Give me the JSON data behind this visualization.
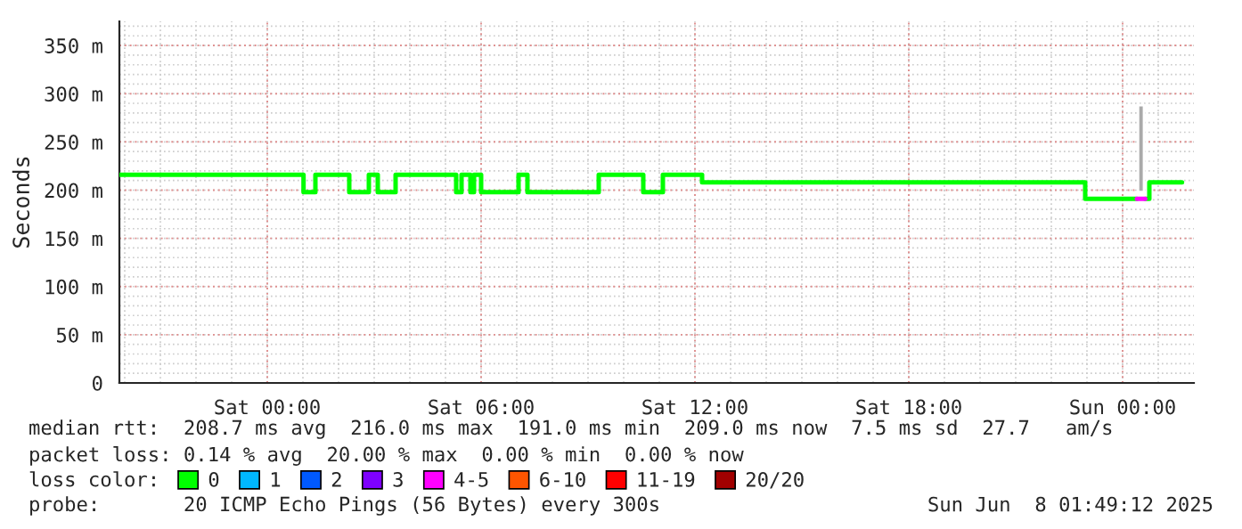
{
  "chart_data": {
    "type": "step",
    "ylabel": "Seconds",
    "xlim": [
      "2025-06-06T19:51",
      "2025-06-08T02:00"
    ],
    "xticks": [
      {
        "value": "2025-06-07T00:00",
        "label": "Sat 00:00"
      },
      {
        "value": "2025-06-07T06:00",
        "label": "Sat 06:00"
      },
      {
        "value": "2025-06-07T12:00",
        "label": "Sat 12:00"
      },
      {
        "value": "2025-06-07T18:00",
        "label": "Sat 18:00"
      },
      {
        "value": "2025-06-08T00:00",
        "label": "Sun 00:00"
      }
    ],
    "ylim": [
      0,
      375
    ],
    "yticks": [
      0,
      {
        "value": 50,
        "label": "50 m"
      },
      {
        "value": 100,
        "label": "100 m"
      },
      {
        "value": 150,
        "label": "150 m"
      },
      {
        "value": 200,
        "label": "200 m"
      },
      {
        "value": 250,
        "label": "250 m"
      },
      {
        "value": 300,
        "label": "300 m"
      },
      {
        "value": 350,
        "label": "350 m"
      }
    ],
    "grid": true,
    "legend": "bottom",
    "legend_title": "loss color:",
    "series": [
      {
        "name": "0",
        "color": "#00ff00",
        "x": [
          "2025-06-06T19:51",
          "2025-06-07T01:01",
          "2025-06-07T01:21",
          "2025-06-07T02:18",
          "2025-06-07T02:51",
          "2025-06-07T03:06",
          "2025-06-07T03:36",
          "2025-06-07T05:18",
          "2025-06-07T05:27",
          "2025-06-07T05:42",
          "2025-06-07T05:48",
          "2025-06-07T06:00",
          "2025-06-07T07:03",
          "2025-06-07T07:18",
          "2025-06-07T09:18",
          "2025-06-07T10:33",
          "2025-06-07T11:06",
          "2025-06-07T12:12",
          "2025-06-07T22:57",
          "2025-06-08T00:24",
          "2025-06-08T00:38",
          "2025-06-08T00:45",
          "2025-06-08T01:40"
        ],
        "values": [
          216,
          198,
          216,
          198,
          216,
          198,
          216,
          198,
          216,
          198,
          216,
          198,
          216,
          198,
          216,
          198,
          216,
          208,
          191,
          null,
          191,
          208,
          208
        ]
      },
      {
        "name": "1",
        "color": "#00b8ff"
      },
      {
        "name": "2",
        "color": "#0059ff"
      },
      {
        "name": "3",
        "color": "#7e00ff"
      },
      {
        "name": "4-5",
        "color": "#ff00ff",
        "x": [
          "2025-06-08T00:24",
          "2025-06-08T00:38"
        ],
        "values": [
          191,
          191
        ]
      },
      {
        "name": "6-10",
        "color": "#ff5500"
      },
      {
        "name": "11-19",
        "color": "#ff0000"
      },
      {
        "name": "20/20",
        "color": "#a10000"
      },
      {
        "type": "bar",
        "color": "#aaaaaa",
        "x": [
          "2025-06-08T00:31"
        ],
        "values": [
          90
        ],
        "base": [
          198
        ]
      }
    ],
    "annotations": [
      "median rtt:  208.7 ms avg  216.0 ms max  191.0 ms min  209.0 ms now  7.5 ms sd  27.7   am/s",
      "packet loss: 0.14 % avg  20.00 % max  0.00 % min  0.00 % now",
      "probe:       20 ICMP Echo Pings (56 Bytes) every 300s",
      "Sun Jun  8 01:49:12 2025"
    ]
  }
}
